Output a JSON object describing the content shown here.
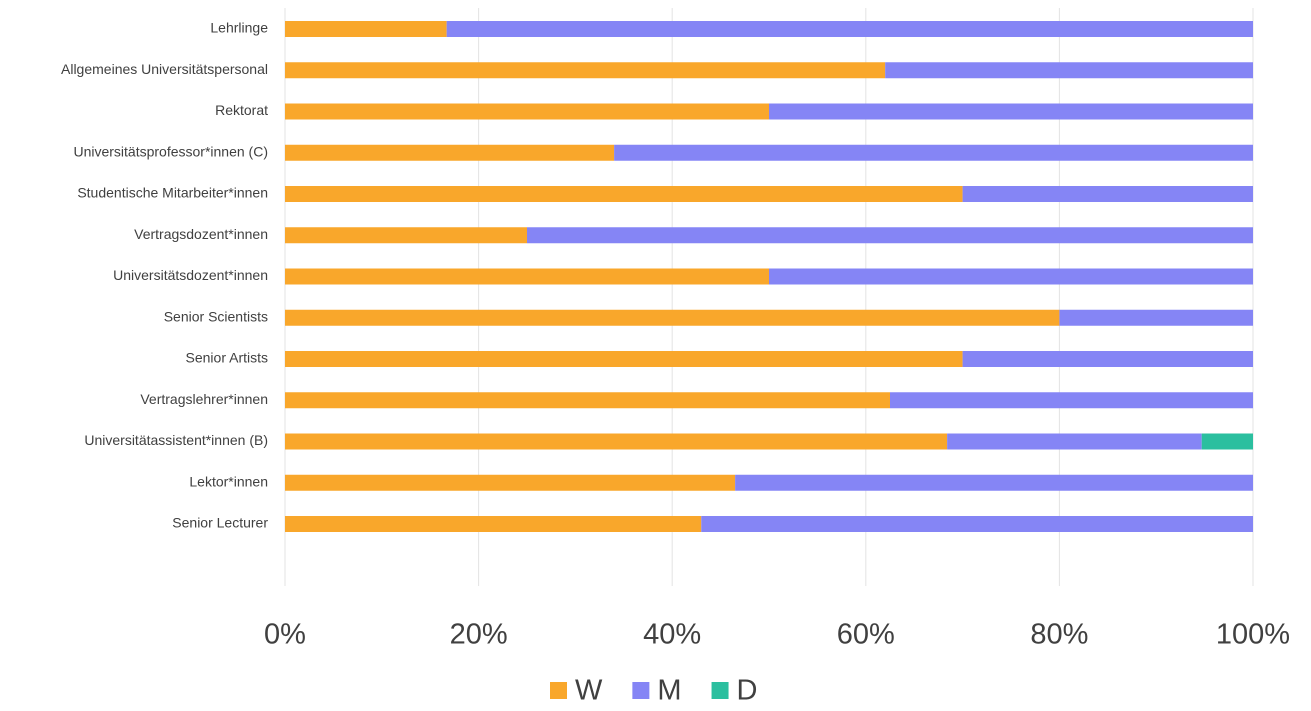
{
  "chart_data": {
    "type": "stacked-bar-horizontal",
    "categories": [
      "Lehrlinge",
      "Allgemeines Universitätspersonal",
      "Rektorat",
      "Universitätsprofessor*innen (C)",
      "Studentische Mitarbeiter*innen",
      "Vertragsdozent*innen",
      "Universitätsdozent*innen",
      "Senior Scientists",
      "Senior Artists",
      "Vertragslehrer*innen",
      "Universitätassistent*innen (B)",
      "Lektor*innen",
      "Senior Lecturer"
    ],
    "series": [
      {
        "name": "W",
        "color": "#f9a72b",
        "values": [
          16.7,
          62,
          50,
          34,
          70,
          25,
          50,
          80,
          70,
          62.5,
          68.4,
          46.5,
          43
        ]
      },
      {
        "name": "M",
        "color": "#8585f5",
        "values": [
          83.3,
          38,
          50,
          66,
          30,
          75,
          50,
          20,
          30,
          37.5,
          26.3,
          53.5,
          57
        ]
      },
      {
        "name": "D",
        "color": "#2bbf9f",
        "values": [
          0,
          0,
          0,
          0,
          0,
          0,
          0,
          0,
          0,
          0,
          5.3,
          0,
          0
        ]
      }
    ],
    "xlim": [
      0,
      100
    ],
    "xticks": [
      {
        "value": 0,
        "label": "0%"
      },
      {
        "value": 20,
        "label": "20%"
      },
      {
        "value": 40,
        "label": "40%"
      },
      {
        "value": 60,
        "label": "60%"
      },
      {
        "value": 80,
        "label": "80%"
      },
      {
        "value": 100,
        "label": "100%"
      }
    ],
    "grid": true,
    "legend": "bottom"
  }
}
